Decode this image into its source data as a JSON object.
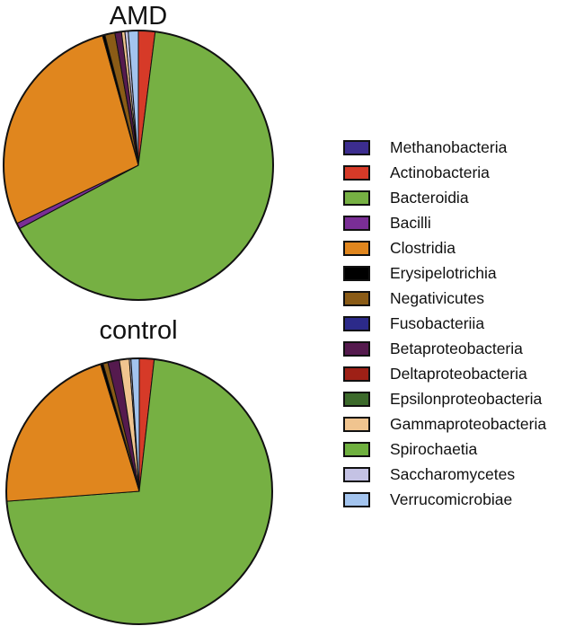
{
  "chart_data": [
    {
      "type": "pie",
      "title": "AMD",
      "slices": [
        {
          "label": "Methanobacteria",
          "value": 0.0
        },
        {
          "label": "Actinobacteria",
          "value": 2.0
        },
        {
          "label": "Bacteroidia",
          "value": 65.2
        },
        {
          "label": "Bacilli",
          "value": 0.7
        },
        {
          "label": "Clostridia",
          "value": 27.8
        },
        {
          "label": "Erysipelotrichia",
          "value": 0.3
        },
        {
          "label": "Negativicutes",
          "value": 1.2
        },
        {
          "label": "Fusobacteriia",
          "value": 0.0
        },
        {
          "label": "Betaproteobacteria",
          "value": 0.8
        },
        {
          "label": "Deltaproteobacteria",
          "value": 0.0
        },
        {
          "label": "Epsilonproteobacteria",
          "value": 0.0
        },
        {
          "label": "Gammaproteobacteria",
          "value": 0.4
        },
        {
          "label": "Spirochaetia",
          "value": 0.0
        },
        {
          "label": "Saccharomycetes",
          "value": 0.4
        },
        {
          "label": "Verrucomicrobiae",
          "value": 1.2
        }
      ]
    },
    {
      "type": "pie",
      "title": "control",
      "slices": [
        {
          "label": "Methanobacteria",
          "value": 0.0
        },
        {
          "label": "Actinobacteria",
          "value": 1.8
        },
        {
          "label": "Bacteroidia",
          "value": 72.0
        },
        {
          "label": "Bacilli",
          "value": 0.0
        },
        {
          "label": "Clostridia",
          "value": 21.5
        },
        {
          "label": "Erysipelotrichia",
          "value": 0.3
        },
        {
          "label": "Negativicutes",
          "value": 0.6
        },
        {
          "label": "Fusobacteriia",
          "value": 0.0
        },
        {
          "label": "Betaproteobacteria",
          "value": 1.4
        },
        {
          "label": "Deltaproteobacteria",
          "value": 0.0
        },
        {
          "label": "Epsilonproteobacteria",
          "value": 0.0
        },
        {
          "label": "Gammaproteobacteria",
          "value": 1.2
        },
        {
          "label": "Spirochaetia",
          "value": 0.0
        },
        {
          "label": "Saccharomycetes",
          "value": 0.2
        },
        {
          "label": "Verrucomicrobiae",
          "value": 1.0
        }
      ]
    }
  ],
  "legend": [
    {
      "label": "Methanobacteria",
      "color": "#3c2d8f"
    },
    {
      "label": "Actinobacteria",
      "color": "#d63a28"
    },
    {
      "label": "Bacteroidia",
      "color": "#76b043"
    },
    {
      "label": "Bacilli",
      "color": "#7a2e96"
    },
    {
      "label": "Clostridia",
      "color": "#e0861e"
    },
    {
      "label": "Erysipelotrichia",
      "color": "#000000"
    },
    {
      "label": "Negativicutes",
      "color": "#8a5b16"
    },
    {
      "label": "Fusobacteriia",
      "color": "#2c2a8a"
    },
    {
      "label": "Betaproteobacteria",
      "color": "#551a4e"
    },
    {
      "label": "Deltaproteobacteria",
      "color": "#9e2016"
    },
    {
      "label": "Epsilonproteobacteria",
      "color": "#3c6a2b"
    },
    {
      "label": "Gammaproteobacteria",
      "color": "#f0c48f"
    },
    {
      "label": "Spirochaetia",
      "color": "#6fb03f"
    },
    {
      "label": "Saccharomycetes",
      "color": "#c4c2e4"
    },
    {
      "label": "Verrucomicrobiae",
      "color": "#a3c4ee"
    }
  ]
}
